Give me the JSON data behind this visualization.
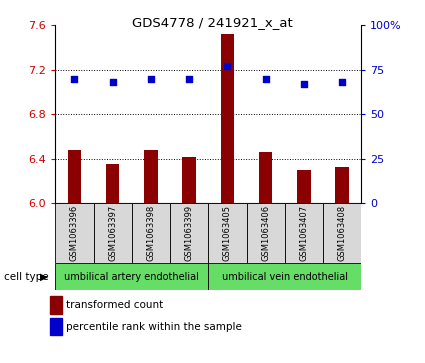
{
  "title": "GDS4778 / 241921_x_at",
  "samples": [
    "GSM1063396",
    "GSM1063397",
    "GSM1063398",
    "GSM1063399",
    "GSM1063405",
    "GSM1063406",
    "GSM1063407",
    "GSM1063408"
  ],
  "transformed_count": [
    6.48,
    6.35,
    6.48,
    6.42,
    7.52,
    6.46,
    6.3,
    6.33
  ],
  "percentile_rank": [
    70,
    68,
    70,
    70,
    77,
    70,
    67,
    68
  ],
  "ylim_left": [
    6.0,
    7.6
  ],
  "yticks_left": [
    6.0,
    6.4,
    6.8,
    7.2,
    7.6
  ],
  "ylim_right": [
    0,
    100
  ],
  "yticks_right": [
    0,
    25,
    50,
    75,
    100
  ],
  "bar_color": "#8B0000",
  "dot_color": "#0000CC",
  "bar_width": 0.35,
  "cell_type_groups": [
    {
      "label": "umbilical artery endothelial",
      "indices": [
        0,
        1,
        2,
        3
      ],
      "color": "#66DD66"
    },
    {
      "label": "umbilical vein endothelial",
      "indices": [
        4,
        5,
        6,
        7
      ],
      "color": "#66DD66"
    }
  ],
  "cell_type_label": "cell type",
  "legend_items": [
    {
      "label": "transformed count",
      "color": "#8B0000"
    },
    {
      "label": "percentile rank within the sample",
      "color": "#0000CC"
    }
  ],
  "background_color": "#d8d8d8",
  "tick_label_color_left": "#CC0000",
  "tick_label_color_right": "#0000CC",
  "grid_yticks": [
    6.4,
    6.8,
    7.2
  ]
}
